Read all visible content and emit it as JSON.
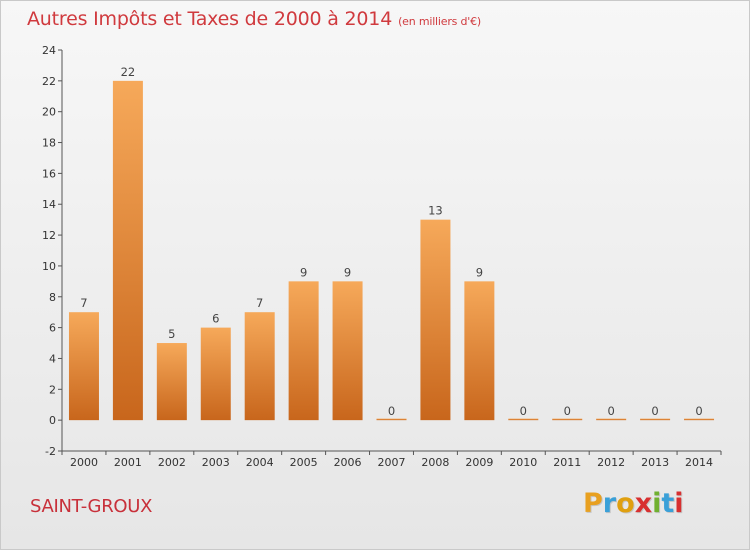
{
  "header": {
    "title": "Autres Impôts et Taxes de 2000 à 2014",
    "unit": "(en milliers d'€)"
  },
  "commune": "SAINT-GROUX",
  "logo": {
    "text": "Proxiti",
    "letters": [
      "P",
      "r",
      "o",
      "x",
      "i",
      "t",
      "i"
    ],
    "colors": [
      "#e8a020",
      "#3aa0d8",
      "#e0a010",
      "#d83030",
      "#70b030",
      "#3aa0d8",
      "#d83030"
    ]
  },
  "colors": {
    "bar_top": "#f6a95a",
    "bar_bottom": "#c8661c",
    "title": "#d03a3e"
  },
  "chart_data": {
    "type": "bar",
    "categories": [
      "2000",
      "2001",
      "2002",
      "2003",
      "2004",
      "2005",
      "2006",
      "2007",
      "2008",
      "2009",
      "2010",
      "2011",
      "2012",
      "2013",
      "2014"
    ],
    "values": [
      7,
      22,
      5,
      6,
      7,
      9,
      9,
      0,
      13,
      9,
      0,
      0,
      0,
      0,
      0
    ],
    "data_labels": [
      "7",
      "22",
      "5",
      "6",
      "7",
      "9",
      "9",
      "0",
      "13",
      "9",
      "0",
      "0",
      "0",
      "0",
      "0"
    ],
    "ylim": [
      -2,
      24
    ],
    "yticks": [
      -2,
      0,
      2,
      4,
      6,
      8,
      10,
      12,
      14,
      16,
      18,
      20,
      22,
      24
    ],
    "grid": false,
    "legend": "none"
  }
}
